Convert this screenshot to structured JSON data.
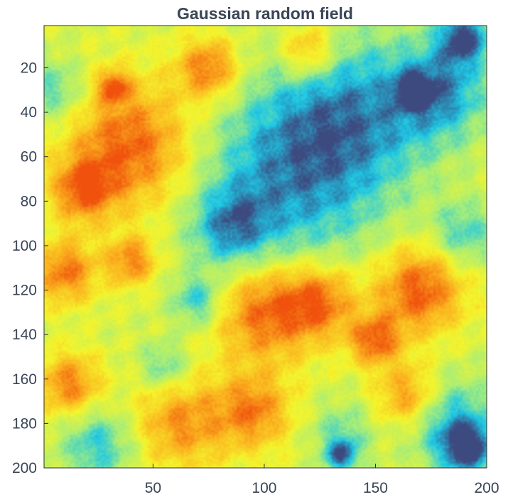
{
  "chart_data": {
    "type": "heatmap",
    "title": "Gaussian random field",
    "xlabel": "",
    "ylabel": "",
    "xlim": [
      1,
      200
    ],
    "ylim": [
      1,
      200
    ],
    "y_reversed": true,
    "xticks": [
      50,
      100,
      150,
      200
    ],
    "yticks": [
      20,
      40,
      60,
      80,
      100,
      120,
      140,
      160,
      180,
      200
    ],
    "grid": false,
    "colormap": [
      "#3d4a80",
      "#1ec8e6",
      "#a7ee78",
      "#f5f52c",
      "#fbb31f",
      "#f0520d"
    ],
    "value_range": [
      -3,
      3
    ],
    "field_resolution": "200 x 200 cells, values approximated from the image",
    "regions": [
      {
        "cx": 40,
        "cy": 55,
        "r": 20,
        "v": 2.7
      },
      {
        "cx": 18,
        "cy": 75,
        "r": 10,
        "v": 2.3
      },
      {
        "cx": 75,
        "cy": 20,
        "r": 10,
        "v": 2.5
      },
      {
        "cx": 32,
        "cy": 28,
        "r": 5,
        "v": 2.3
      },
      {
        "cx": 120,
        "cy": 12,
        "r": 9,
        "v": 2.1
      },
      {
        "cx": 100,
        "cy": 130,
        "r": 16,
        "v": 2.6
      },
      {
        "cx": 125,
        "cy": 125,
        "r": 12,
        "v": 2.4
      },
      {
        "cx": 170,
        "cy": 120,
        "r": 14,
        "v": 2.8
      },
      {
        "cx": 150,
        "cy": 143,
        "r": 8,
        "v": 2.5
      },
      {
        "cx": 10,
        "cy": 112,
        "r": 10,
        "v": 2.4
      },
      {
        "cx": 40,
        "cy": 107,
        "r": 8,
        "v": 2.2
      },
      {
        "cx": 12,
        "cy": 163,
        "r": 10,
        "v": 2.3
      },
      {
        "cx": 62,
        "cy": 180,
        "r": 15,
        "v": 2.0
      },
      {
        "cx": 95,
        "cy": 175,
        "r": 12,
        "v": 2.2
      },
      {
        "cx": 165,
        "cy": 168,
        "r": 10,
        "v": 2.1
      },
      {
        "cx": 110,
        "cy": 70,
        "r": 30,
        "v": -2.2
      },
      {
        "cx": 140,
        "cy": 40,
        "r": 25,
        "v": -2.0
      },
      {
        "cx": 180,
        "cy": 30,
        "r": 15,
        "v": -2.2
      },
      {
        "cx": 190,
        "cy": 6,
        "r": 8,
        "v": -3.0
      },
      {
        "cx": 168,
        "cy": 30,
        "r": 5,
        "v": -2.8
      },
      {
        "cx": 192,
        "cy": 192,
        "r": 8,
        "v": -3.0
      },
      {
        "cx": 25,
        "cy": 190,
        "r": 12,
        "v": -1.8
      },
      {
        "cx": 185,
        "cy": 180,
        "r": 14,
        "v": -2.0
      },
      {
        "cx": 5,
        "cy": 30,
        "r": 10,
        "v": -1.5
      },
      {
        "cx": 70,
        "cy": 125,
        "r": 8,
        "v": -1.8
      },
      {
        "cx": 135,
        "cy": 195,
        "r": 5,
        "v": -2.5
      },
      {
        "cx": 190,
        "cy": 95,
        "r": 10,
        "v": -1.6
      },
      {
        "cx": 55,
        "cy": 155,
        "r": 8,
        "v": -1.5
      },
      {
        "cx": 85,
        "cy": 92,
        "r": 12,
        "v": -1.9
      },
      {
        "cx": 135,
        "cy": 185,
        "r": 10,
        "v": -1.2
      }
    ]
  }
}
